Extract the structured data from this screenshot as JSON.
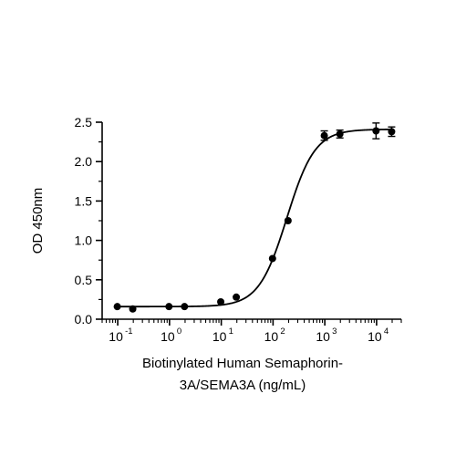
{
  "chart_data": {
    "type": "scatter",
    "title": "",
    "xlabel_lines": [
      "Biotinylated Human Semaphorin-",
      "3A/SEMA3A (ng/mL)"
    ],
    "ylabel": "OD 450nm",
    "x_scale": "log10",
    "xlim": [
      0.05,
      30000
    ],
    "ylim": [
      0,
      2.5
    ],
    "x_ticks": [
      {
        "base": "10",
        "exp": "-1"
      },
      {
        "base": "10",
        "exp": "0"
      },
      {
        "base": "10",
        "exp": "1"
      },
      {
        "base": "10",
        "exp": "2"
      },
      {
        "base": "10",
        "exp": "3"
      },
      {
        "base": "10",
        "exp": "4"
      }
    ],
    "y_ticks": [
      "0.0",
      "0.5",
      "1.0",
      "1.5",
      "2.0",
      "2.5"
    ],
    "grid": false,
    "legend": "none",
    "series": [
      {
        "points": [
          {
            "x": 0.098,
            "y": 0.16,
            "err": 0
          },
          {
            "x": 0.195,
            "y": 0.13,
            "err": 0
          },
          {
            "x": 0.977,
            "y": 0.16,
            "err": 0
          },
          {
            "x": 1.95,
            "y": 0.16,
            "err": 0
          },
          {
            "x": 9.77,
            "y": 0.22,
            "err": 0
          },
          {
            "x": 19.5,
            "y": 0.28,
            "err": 0
          },
          {
            "x": 97.7,
            "y": 0.77,
            "err": 0
          },
          {
            "x": 195,
            "y": 1.25,
            "err": 0
          },
          {
            "x": 977,
            "y": 2.33,
            "err": 0.06
          },
          {
            "x": 1953,
            "y": 2.35,
            "err": 0.05
          },
          {
            "x": 9766,
            "y": 2.39,
            "err": 0.1
          },
          {
            "x": 19531,
            "y": 2.38,
            "err": 0.06
          }
        ],
        "fit": {
          "model": "4PL",
          "bottom": 0.16,
          "top": 2.41,
          "ec50": 185,
          "hill": 1.6
        }
      }
    ]
  },
  "colors": {
    "marker": "#000000",
    "line": "#000000",
    "axis": "#000000"
  }
}
